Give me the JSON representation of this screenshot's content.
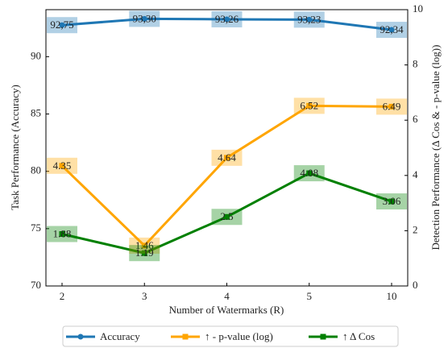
{
  "chart_data": {
    "type": "line",
    "x_label": "Number of Watermarks (R)",
    "y_label": "Task Performance (Accuracy)",
    "y2_label": "Detection Performance (Δ Cos & - p-value (log))",
    "categories": [
      "2",
      "3",
      "4",
      "5",
      "10"
    ],
    "ylim": [
      70,
      94.1
    ],
    "yticks": [
      70,
      75,
      80,
      85,
      90
    ],
    "y2lim": [
      0,
      10
    ],
    "y2ticks": [
      0,
      2,
      4,
      6,
      8,
      10
    ],
    "legend": "bottom",
    "series": [
      {
        "name": "Accuracy",
        "color": "#1f77b4",
        "marker": "circle",
        "values": [
          92.75,
          93.3,
          93.26,
          93.23,
          92.34
        ],
        "value_labels": [
          "92,75",
          "93,30",
          "93,26",
          "93,23",
          "92,34"
        ]
      },
      {
        "name": "↑ - p-value (log)",
        "color": "#ffa500",
        "marker": "square",
        "axis": "y2",
        "values": [
          4.35,
          1.46,
          4.64,
          6.52,
          6.49
        ]
      },
      {
        "name": "↑ Δ Cos",
        "color": "#008000",
        "marker": "square",
        "axis": "y2",
        "values": [
          1.88,
          1.19,
          2.5,
          4.08,
          3.06
        ]
      }
    ]
  }
}
